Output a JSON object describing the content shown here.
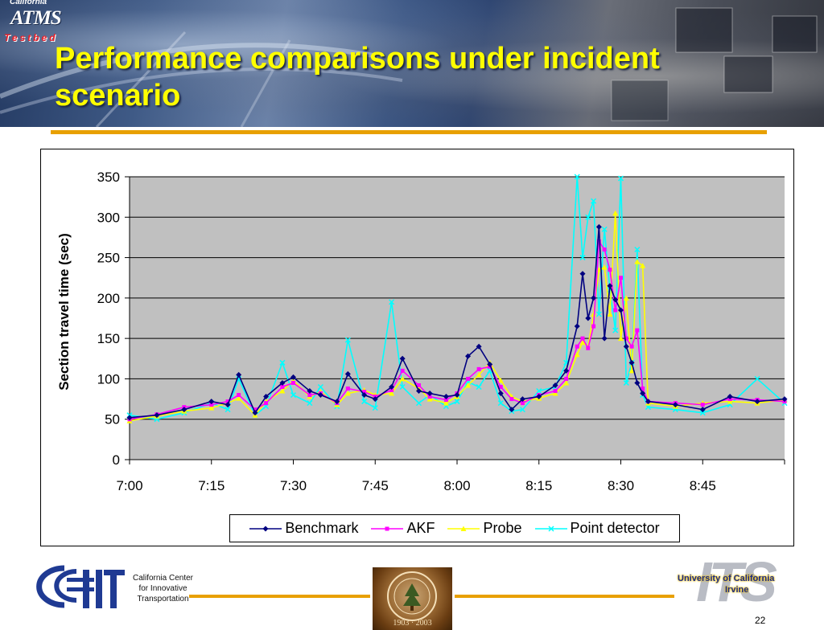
{
  "slide": {
    "title": "Performance comparisons under incident scenario",
    "page_number": "22"
  },
  "logos": {
    "testbed": {
      "california": "California",
      "atms": "ATMS",
      "testbed": "Testbed"
    },
    "ccit": {
      "line1": "California Center",
      "line2": "for Innovative",
      "line3": "Transportation"
    },
    "umich": {
      "year": "1903 · 2003"
    },
    "its": {
      "letters": "ITS",
      "university": "University of California",
      "campus": "Irvine"
    }
  },
  "colors": {
    "title": "#ffff00",
    "accent_rule": "#e8a000",
    "plot_background": "#c0c0c0"
  },
  "chart_data": {
    "type": "line",
    "title": "",
    "xlabel": "",
    "ylabel": "Section travel time (sec)",
    "ylim": [
      0,
      350
    ],
    "yticks": [
      0,
      50,
      100,
      150,
      200,
      250,
      300,
      350
    ],
    "xlim_minutes": [
      420,
      540
    ],
    "xticks": [
      "7:00",
      "7:15",
      "7:30",
      "7:45",
      "8:00",
      "8:15",
      "8:30",
      "8:45"
    ],
    "grid": "horizontal",
    "legend_position": "bottom",
    "x": [
      "7:00",
      "7:05",
      "7:10",
      "7:15",
      "7:18",
      "7:20",
      "7:23",
      "7:25",
      "7:28",
      "7:30",
      "7:33",
      "7:35",
      "7:38",
      "7:40",
      "7:43",
      "7:45",
      "7:48",
      "7:50",
      "7:53",
      "7:55",
      "7:58",
      "8:00",
      "8:02",
      "8:04",
      "8:06",
      "8:08",
      "8:10",
      "8:12",
      "8:15",
      "8:18",
      "8:20",
      "8:22",
      "8:23",
      "8:24",
      "8:25",
      "8:26",
      "8:27",
      "8:28",
      "8:29",
      "8:30",
      "8:31",
      "8:32",
      "8:33",
      "8:34",
      "8:35",
      "8:40",
      "8:45",
      "8:50",
      "8:55",
      "9:00"
    ],
    "series": [
      {
        "name": "Benchmark",
        "color": "#000080",
        "marker": "diamond",
        "values": [
          52,
          55,
          62,
          72,
          68,
          105,
          58,
          78,
          95,
          102,
          85,
          80,
          72,
          106,
          80,
          75,
          90,
          125,
          85,
          82,
          78,
          80,
          128,
          140,
          118,
          82,
          62,
          75,
          78,
          92,
          110,
          165,
          230,
          175,
          200,
          288,
          150,
          215,
          198,
          185,
          140,
          120,
          95,
          82,
          72,
          68,
          62,
          78,
          72,
          75
        ]
      },
      {
        "name": "AKF",
        "color": "#ff00ff",
        "marker": "square",
        "values": [
          50,
          56,
          65,
          68,
          72,
          80,
          62,
          70,
          90,
          95,
          80,
          82,
          70,
          88,
          84,
          78,
          86,
          110,
          92,
          78,
          74,
          82,
          100,
          112,
          115,
          90,
          75,
          70,
          80,
          85,
          100,
          140,
          150,
          138,
          165,
          270,
          260,
          235,
          185,
          225,
          150,
          140,
          160,
          88,
          72,
          70,
          68,
          75,
          74,
          72
        ]
      },
      {
        "name": "Probe",
        "color": "#ffff00",
        "marker": "triangle",
        "values": [
          48,
          54,
          60,
          64,
          70,
          76,
          55,
          72,
          85,
          98,
          78,
          84,
          68,
          82,
          86,
          80,
          82,
          100,
          88,
          75,
          70,
          78,
          92,
          105,
          120,
          98,
          78,
          72,
          76,
          82,
          95,
          130,
          145,
          140,
          180,
          235,
          238,
          180,
          305,
          150,
          200,
          110,
          245,
          240,
          70,
          66,
          70,
          72,
          70,
          74
        ]
      },
      {
        "name": "Point detector",
        "color": "#00ffff",
        "marker": "x",
        "values": [
          55,
          50,
          58,
          70,
          62,
          100,
          55,
          66,
          120,
          80,
          70,
          90,
          66,
          148,
          72,
          64,
          195,
          90,
          70,
          80,
          66,
          72,
          96,
          90,
          110,
          70,
          60,
          62,
          85,
          90,
          120,
          350,
          250,
          300,
          320,
          180,
          285,
          210,
          160,
          348,
          95,
          120,
          260,
          80,
          65,
          62,
          58,
          68,
          100,
          70
        ]
      }
    ]
  }
}
